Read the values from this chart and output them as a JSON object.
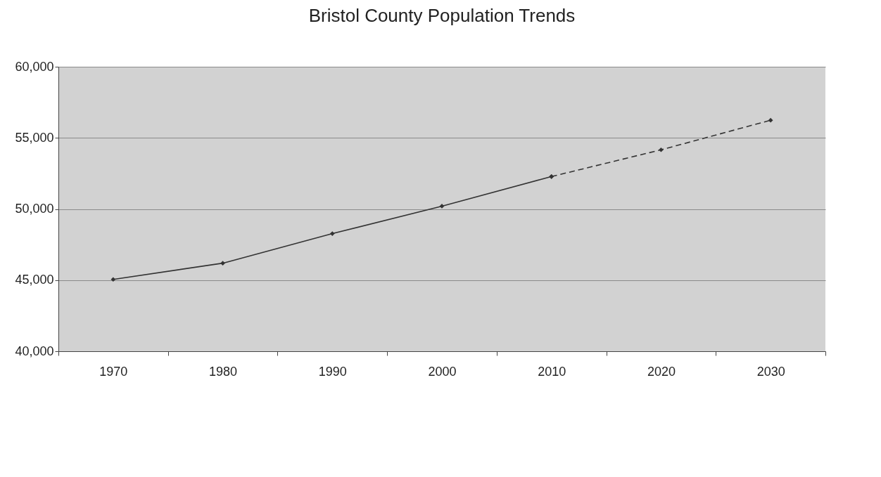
{
  "chart_data": {
    "type": "line",
    "title": "Bristol County Population Trends",
    "categories": [
      "1970",
      "1980",
      "1990",
      "2000",
      "2010",
      "2020",
      "2030"
    ],
    "series": [
      {
        "color": "#333333",
        "line_style": "solid",
        "values": [
          45050,
          46190,
          48270,
          50200,
          52280,
          null,
          null
        ]
      },
      {
        "color": "#333333",
        "line_style": "dashed",
        "values": [
          null,
          null,
          null,
          null,
          52280,
          54160,
          56240
        ]
      }
    ],
    "ylim": [
      40000,
      60000
    ],
    "yticks": [
      {
        "value": 40000,
        "label": "40,000"
      },
      {
        "value": 45000,
        "label": "45,000"
      },
      {
        "value": 50000,
        "label": "50,000"
      },
      {
        "value": 55000,
        "label": "55,000"
      },
      {
        "value": 60000,
        "label": "60,000"
      }
    ],
    "grid": "y",
    "marker": "diamond"
  }
}
